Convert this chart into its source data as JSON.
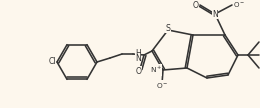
{
  "bg": "#fdf7ed",
  "bc": "#333333",
  "lw": 1.15,
  "fs": 5.6,
  "figsize": [
    2.6,
    1.08
  ],
  "dpi": 100,
  "xlim": [
    0.0,
    2.6
  ],
  "ylim": [
    0.0,
    1.08
  ]
}
